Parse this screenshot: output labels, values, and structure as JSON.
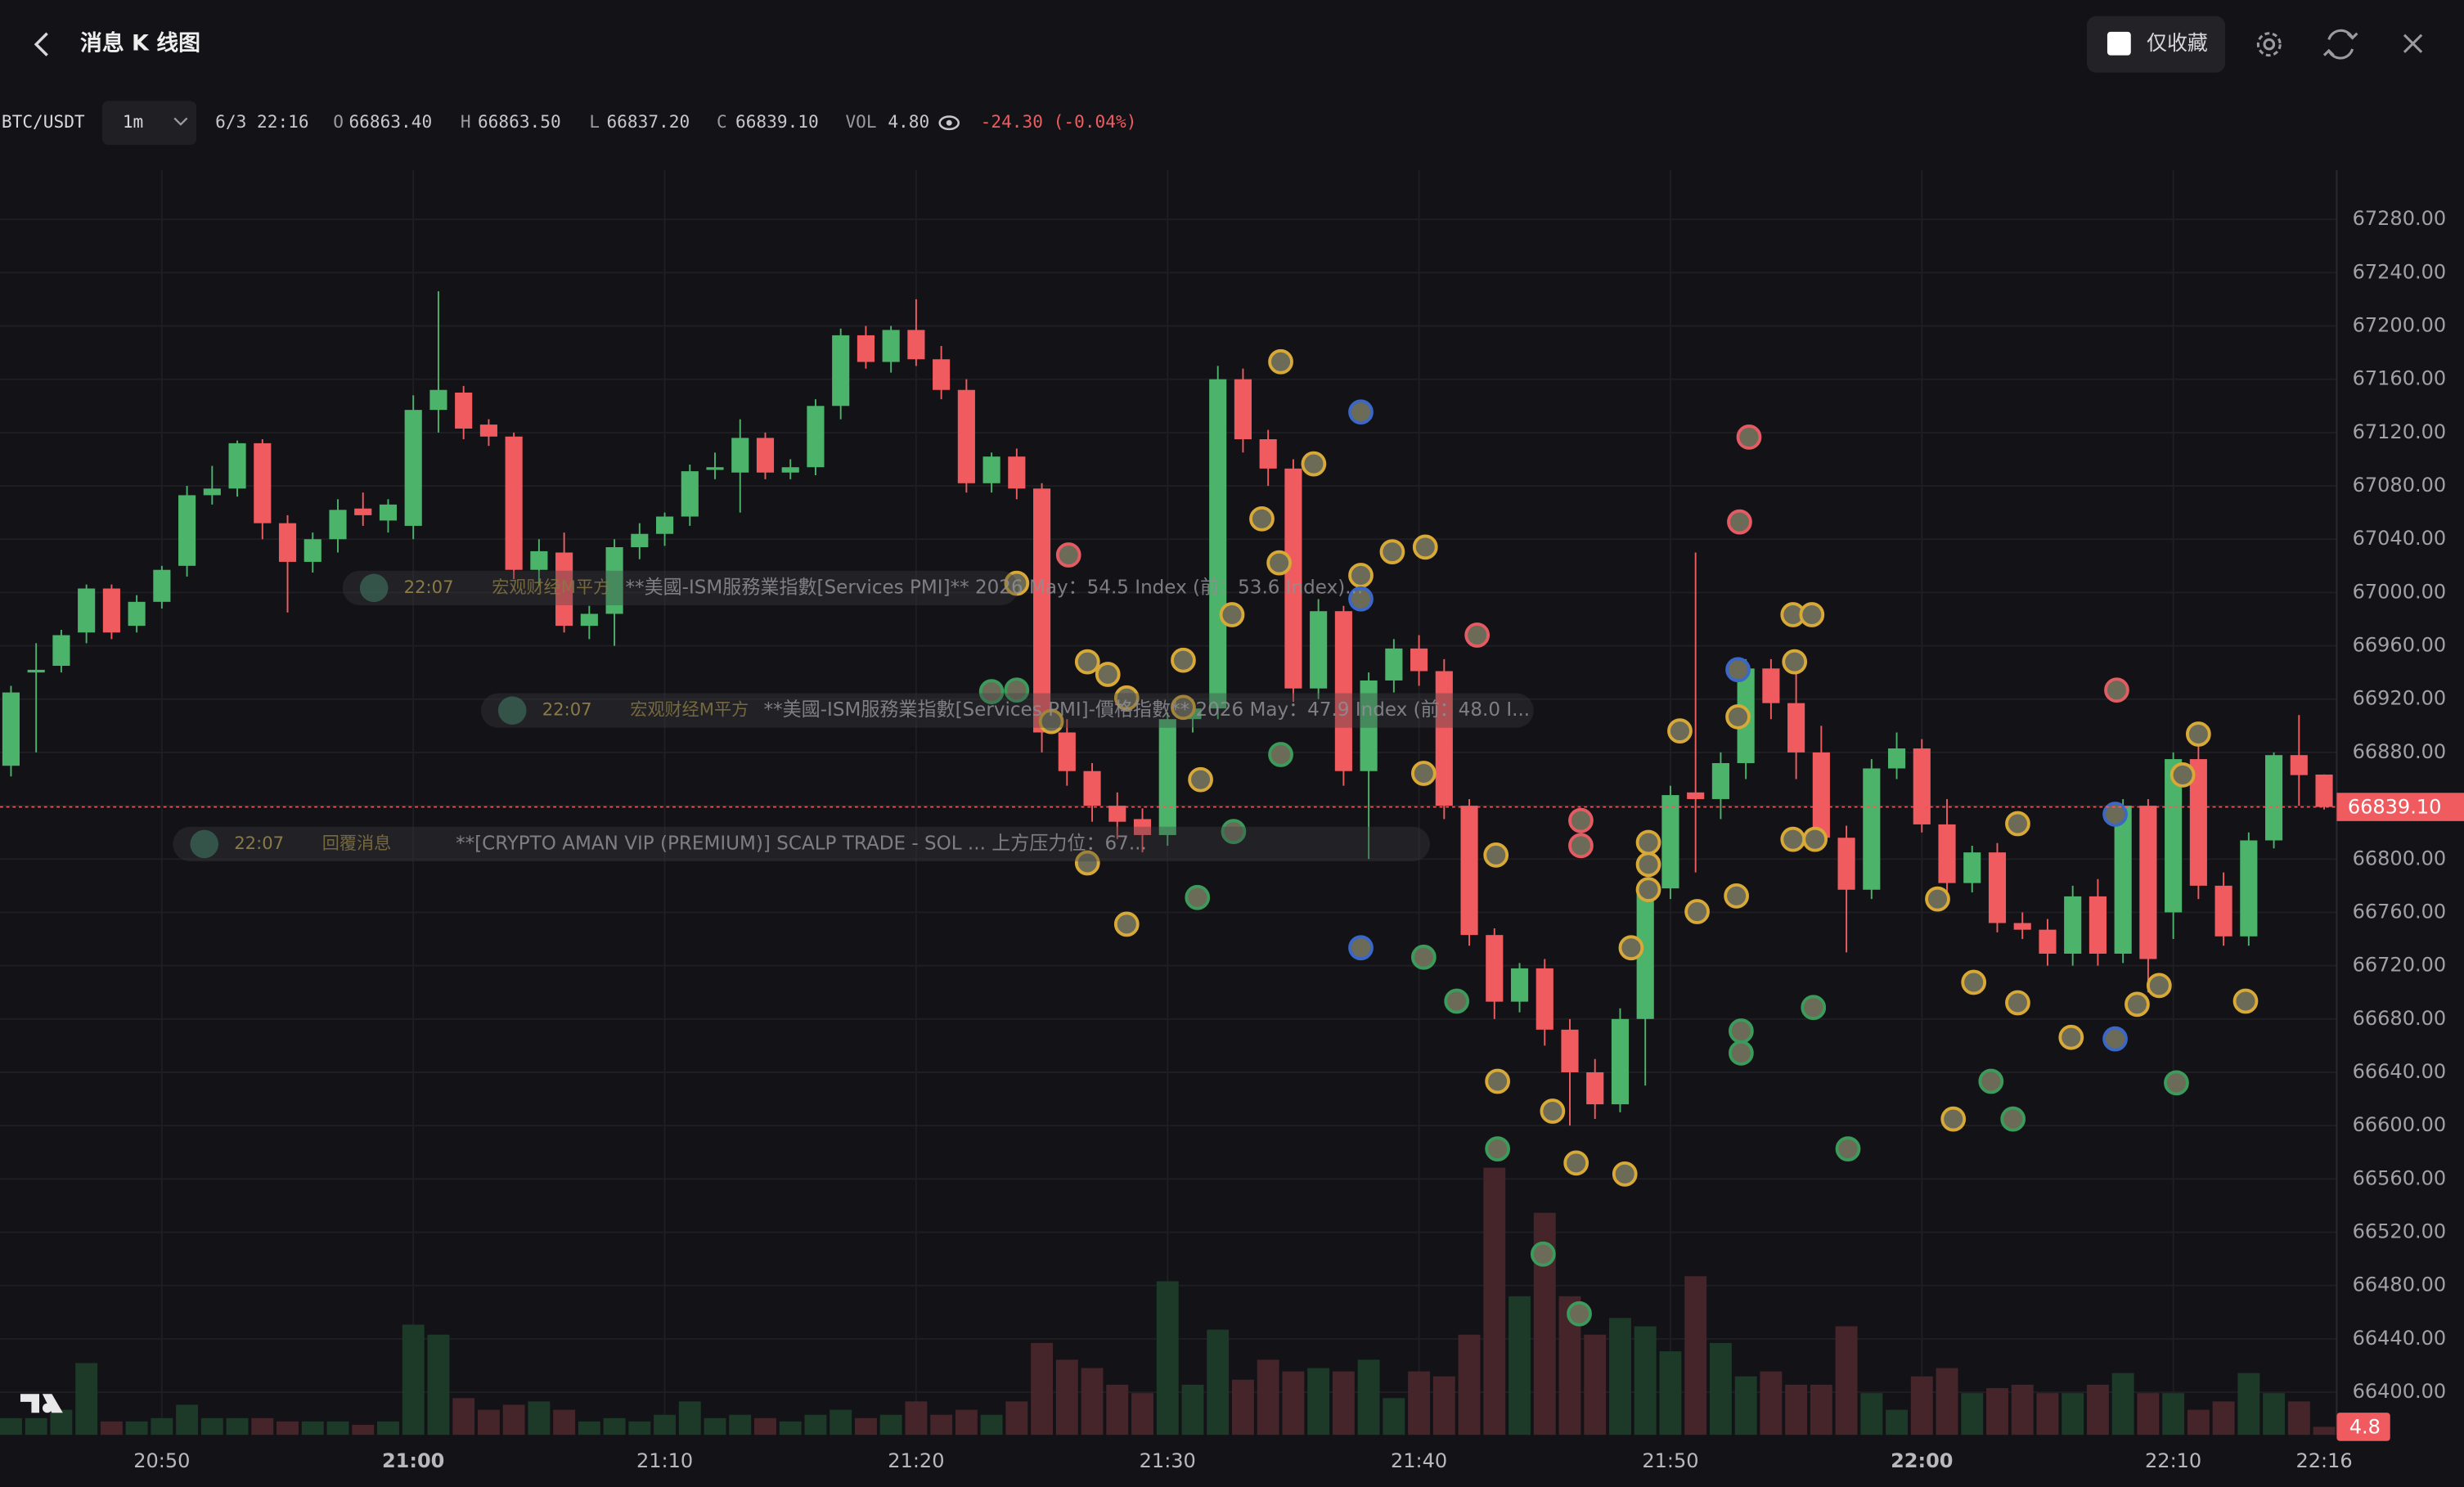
{
  "header": {
    "title": "消息 K 线图",
    "favorites_only": "仅收藏"
  },
  "chart_data": {
    "type": "candlestick",
    "legend": {
      "symbol": "BTC/USDT",
      "interval": "1m",
      "time": "6/3 22:16",
      "o_label": "O",
      "o": "66863.40",
      "h_label": "H",
      "h": "66863.50",
      "l_label": "L",
      "l": "66837.20",
      "c_label": "C",
      "c": "66839.10",
      "vol_label": "VOL",
      "vol": "4.80",
      "change": "-24.30 (-0.04%)"
    },
    "categories": [
      null,
      null,
      null,
      null,
      null,
      null,
      "20:50",
      null,
      null,
      null,
      null,
      null,
      null,
      null,
      null,
      null,
      "21:00",
      null,
      null,
      null,
      null,
      null,
      null,
      null,
      null,
      null,
      "21:10",
      null,
      null,
      null,
      null,
      null,
      null,
      null,
      null,
      null,
      "21:20",
      null,
      null,
      null,
      null,
      null,
      null,
      null,
      null,
      null,
      "21:30",
      null,
      null,
      null,
      null,
      null,
      null,
      null,
      null,
      null,
      "21:40",
      null,
      null,
      null,
      null,
      null,
      null,
      null,
      null,
      null,
      "21:50",
      null,
      null,
      null,
      null,
      null,
      null,
      null,
      null,
      null,
      "22:00",
      null,
      null,
      null,
      null,
      null,
      null,
      null,
      null,
      null,
      "22:10",
      null,
      null,
      null,
      null,
      null,
      "22:16"
    ],
    "ohlc": [
      [
        66870,
        66930,
        66862,
        66925
      ],
      [
        66940,
        66962,
        66880,
        66942
      ],
      [
        66945,
        66972,
        66940,
        66968
      ],
      [
        66970,
        67006,
        66962,
        67003
      ],
      [
        67003,
        67006,
        66965,
        66970
      ],
      [
        66975,
        66998,
        66970,
        66993
      ],
      [
        66993,
        67020,
        66988,
        67017
      ],
      [
        67020,
        67080,
        67012,
        67073
      ],
      [
        67073,
        67095,
        67066,
        67078
      ],
      [
        67078,
        67114,
        67072,
        67112
      ],
      [
        67112,
        67115,
        67040,
        67052
      ],
      [
        67052,
        67058,
        66985,
        67023
      ],
      [
        67023,
        67045,
        67015,
        67040
      ],
      [
        67040,
        67070,
        67030,
        67062
      ],
      [
        67063,
        67075,
        67050,
        67058
      ],
      [
        67054,
        67070,
        67045,
        67066
      ],
      [
        67050,
        67148,
        67040,
        67137
      ],
      [
        67137,
        67226,
        67120,
        67152
      ],
      [
        67150,
        67155,
        67115,
        67123
      ],
      [
        67126,
        67130,
        67110,
        67117
      ],
      [
        67117,
        67120,
        67010,
        67017
      ],
      [
        67017,
        67040,
        67005,
        67031
      ],
      [
        67030,
        67045,
        66970,
        66975
      ],
      [
        66975,
        66990,
        66965,
        66984
      ],
      [
        66984,
        67040,
        66960,
        67034
      ],
      [
        67034,
        67052,
        67025,
        67044
      ],
      [
        67044,
        67060,
        67035,
        67057
      ],
      [
        67057,
        67096,
        67050,
        67091
      ],
      [
        67092,
        67105,
        67085,
        67094
      ],
      [
        67090,
        67130,
        67060,
        67116
      ],
      [
        67116,
        67120,
        67085,
        67090
      ],
      [
        67090,
        67100,
        67085,
        67094
      ],
      [
        67094,
        67145,
        67088,
        67140
      ],
      [
        67140,
        67198,
        67130,
        67193
      ],
      [
        67193,
        67200,
        67168,
        67173
      ],
      [
        67173,
        67200,
        67165,
        67197
      ],
      [
        67197,
        67220,
        67170,
        67175
      ],
      [
        67175,
        67185,
        67145,
        67152
      ],
      [
        67152,
        67160,
        67075,
        67082
      ],
      [
        67082,
        67105,
        67075,
        67102
      ],
      [
        67102,
        67108,
        67070,
        67078
      ],
      [
        67078,
        67082,
        66880,
        66895
      ],
      [
        66895,
        66905,
        66855,
        66866
      ],
      [
        66866,
        66872,
        66828,
        66840
      ],
      [
        66840,
        66850,
        66815,
        66828
      ],
      [
        66830,
        66838,
        66805,
        66818
      ],
      [
        66818,
        66910,
        66810,
        66905
      ],
      [
        66905,
        66920,
        66895,
        66913
      ],
      [
        66913,
        67170,
        66905,
        67160
      ],
      [
        67160,
        67168,
        67105,
        67115
      ],
      [
        67115,
        67122,
        67080,
        67093
      ],
      [
        67093,
        67100,
        66918,
        66928
      ],
      [
        66928,
        66995,
        66920,
        66986
      ],
      [
        66986,
        66990,
        66855,
        66866
      ],
      [
        66866,
        66940,
        66800,
        66934
      ],
      [
        66934,
        66965,
        66925,
        66958
      ],
      [
        66958,
        66968,
        66930,
        66941
      ],
      [
        66941,
        66950,
        66830,
        66840
      ],
      [
        66840,
        66845,
        66735,
        66743
      ],
      [
        66743,
        66748,
        66680,
        66693
      ],
      [
        66693,
        66722,
        66685,
        66718
      ],
      [
        66718,
        66725,
        66660,
        66672
      ],
      [
        66672,
        66680,
        66600,
        66640
      ],
      [
        66640,
        66650,
        66605,
        66616
      ],
      [
        66616,
        66688,
        66610,
        66680
      ],
      [
        66680,
        66785,
        66630,
        66778
      ],
      [
        66778,
        66855,
        66770,
        66848
      ],
      [
        66850,
        67030,
        66790,
        66845
      ],
      [
        66845,
        66880,
        66830,
        66872
      ],
      [
        66872,
        66950,
        66860,
        66943
      ],
      [
        66943,
        66950,
        66905,
        66917
      ],
      [
        66917,
        66940,
        66860,
        66880
      ],
      [
        66880,
        66900,
        66810,
        66816
      ],
      [
        66816,
        66825,
        66730,
        66777
      ],
      [
        66777,
        66875,
        66770,
        66868
      ],
      [
        66868,
        66895,
        66860,
        66883
      ],
      [
        66883,
        66890,
        66820,
        66826
      ],
      [
        66826,
        66845,
        66775,
        66782
      ],
      [
        66782,
        66810,
        66775,
        66805
      ],
      [
        66805,
        66812,
        66745,
        66752
      ],
      [
        66752,
        66760,
        66740,
        66747
      ],
      [
        66747,
        66755,
        66720,
        66729
      ],
      [
        66729,
        66780,
        66720,
        66772
      ],
      [
        66772,
        66785,
        66720,
        66729
      ],
      [
        66729,
        66845,
        66722,
        66840
      ],
      [
        66840,
        66845,
        66700,
        66725
      ],
      [
        66760,
        66880,
        66740,
        66875
      ],
      [
        66875,
        66890,
        66770,
        66780
      ],
      [
        66780,
        66790,
        66735,
        66742
      ],
      [
        66742,
        66820,
        66735,
        66814
      ],
      [
        66814,
        66880,
        66808,
        66878
      ],
      [
        66878,
        66908,
        66840,
        66863
      ],
      [
        66863.4,
        66863.5,
        66837.2,
        66839.1
      ]
    ],
    "volume": [
      10,
      10,
      15,
      43,
      8,
      8,
      10,
      18,
      10,
      10,
      10,
      8,
      8,
      8,
      6,
      8,
      66,
      60,
      22,
      15,
      18,
      20,
      15,
      8,
      10,
      8,
      12,
      20,
      10,
      12,
      10,
      8,
      12,
      15,
      10,
      12,
      20,
      12,
      15,
      12,
      20,
      55,
      45,
      40,
      30,
      25,
      92,
      30,
      63,
      33,
      45,
      38,
      40,
      38,
      45,
      22,
      38,
      35,
      60,
      160,
      83,
      133,
      83,
      60,
      70,
      65,
      50,
      95,
      55,
      35,
      38,
      30,
      30,
      65,
      25,
      15,
      35,
      40,
      25,
      28,
      30,
      25,
      25,
      30,
      37,
      25,
      25,
      15,
      20,
      37,
      25,
      20,
      4.8
    ],
    "up_color": "#4bb36a",
    "down_color": "#ef5b5f",
    "up_volume_color": "#1d3a29",
    "down_volume_color": "#45252a",
    "ylim": [
      66368,
      67317
    ],
    "yticks": [
      {
        "value": 66400,
        "label": "66400.00"
      },
      {
        "value": 66440,
        "label": "66440.00"
      },
      {
        "value": 66480,
        "label": "66480.00"
      },
      {
        "value": 66520,
        "label": "66520.00"
      },
      {
        "value": 66560,
        "label": "66560.00"
      },
      {
        "value": 66600,
        "label": "66600.00"
      },
      {
        "value": 66640,
        "label": "66640.00"
      },
      {
        "value": 66680,
        "label": "66680.00"
      },
      {
        "value": 66720,
        "label": "66720.00"
      },
      {
        "value": 66760,
        "label": "66760.00"
      },
      {
        "value": 66800,
        "label": "66800.00"
      },
      {
        "value": 66840,
        "label": "66840.00"
      },
      {
        "value": 66880,
        "label": "66880.00"
      },
      {
        "value": 66920,
        "label": "66920.00"
      },
      {
        "value": 66960,
        "label": "66960.00"
      },
      {
        "value": 67000,
        "label": "67000.00"
      },
      {
        "value": 67040,
        "label": "67040.00"
      },
      {
        "value": 67080,
        "label": "67080.00"
      },
      {
        "value": 67120,
        "label": "67120.00"
      },
      {
        "value": 67160,
        "label": "67160.00"
      },
      {
        "value": 67200,
        "label": "67200.00"
      },
      {
        "value": 67240,
        "label": "67240.00"
      },
      {
        "value": 67280,
        "label": "67280.00"
      }
    ],
    "last_price": {
      "value": 66839.1,
      "label": "66839.10"
    },
    "grid": true,
    "annotations": [
      {
        "time": "22:07",
        "source": "宏观财经M平方",
        "text": "**美國-ISM服務業指數[Services PMI]** 2026 May：54.5 Index (前：53.6 Index)..."
      },
      {
        "time": "22:07",
        "source": "宏观财经M平方",
        "text": "**美國-ISM服務業指數[Services PMI]-價格指數** 2026 May：47.9 Index (前：48.0 I..."
      },
      {
        "time": "22:07",
        "source": "回覆消息",
        "text": "**[CRYPTO AMAN VIP (PREMIUM)] SCALP TRADE - SOL ... 上方压力位：67..."
      }
    ]
  }
}
